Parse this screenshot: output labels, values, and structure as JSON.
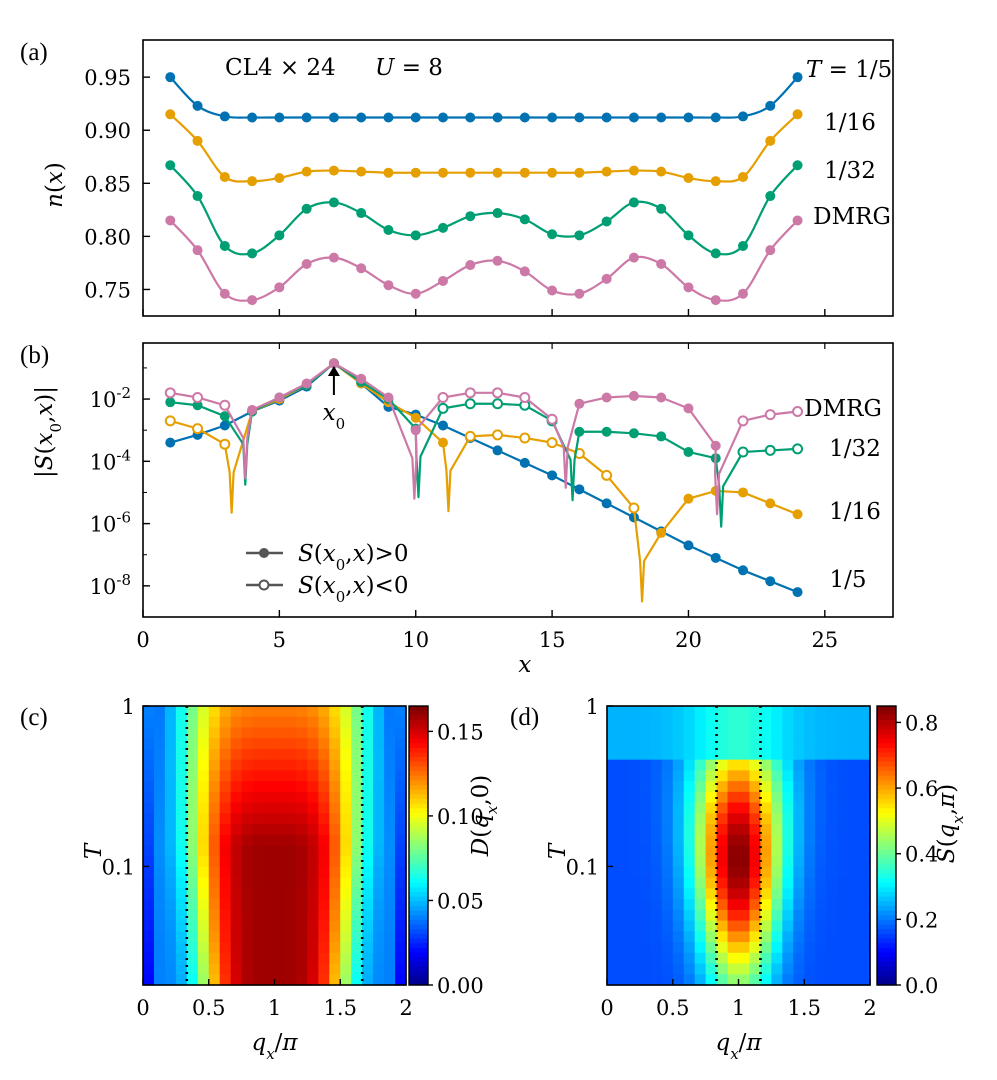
{
  "colors": {
    "T_1_5": "#0072b2",
    "T_1_16": "#e69f00",
    "T_1_32": "#009e73",
    "DMRG": "#cc79a7"
  },
  "chart_data": [
    {
      "panel": "(a)",
      "type": "line",
      "annotation": "CL4 × 24    U = 8",
      "xlim": [
        0,
        27.5
      ],
      "ylim": [
        0.725,
        0.985
      ],
      "yticks": [
        "0.75",
        "0.80",
        "0.85",
        "0.90",
        "0.95"
      ],
      "ylabel": "n(x)",
      "x": [
        1,
        2,
        3,
        4,
        5,
        6,
        7,
        8,
        9,
        10,
        11,
        12,
        13,
        14,
        15,
        16,
        17,
        18,
        19,
        20,
        21,
        22,
        23,
        24
      ],
      "series": [
        {
          "name": "T = 1/5",
          "key": "T_1_5",
          "values": [
            0.95,
            0.923,
            0.913,
            0.912,
            0.912,
            0.912,
            0.912,
            0.912,
            0.912,
            0.912,
            0.912,
            0.912,
            0.912,
            0.912,
            0.912,
            0.912,
            0.912,
            0.912,
            0.912,
            0.912,
            0.912,
            0.913,
            0.923,
            0.95
          ]
        },
        {
          "name": "1/16",
          "key": "T_1_16",
          "values": [
            0.915,
            0.89,
            0.856,
            0.852,
            0.855,
            0.861,
            0.862,
            0.861,
            0.86,
            0.86,
            0.86,
            0.86,
            0.86,
            0.86,
            0.86,
            0.86,
            0.861,
            0.862,
            0.861,
            0.855,
            0.852,
            0.856,
            0.89,
            0.915
          ]
        },
        {
          "name": "1/32",
          "key": "T_1_32",
          "values": [
            0.867,
            0.838,
            0.791,
            0.784,
            0.801,
            0.826,
            0.832,
            0.822,
            0.806,
            0.801,
            0.808,
            0.819,
            0.822,
            0.816,
            0.802,
            0.801,
            0.814,
            0.832,
            0.826,
            0.801,
            0.784,
            0.791,
            0.838,
            0.867
          ]
        },
        {
          "name": "DMRG",
          "key": "DMRG",
          "values": [
            0.815,
            0.787,
            0.746,
            0.74,
            0.752,
            0.774,
            0.78,
            0.77,
            0.754,
            0.746,
            0.758,
            0.773,
            0.777,
            0.767,
            0.749,
            0.746,
            0.76,
            0.78,
            0.774,
            0.752,
            0.74,
            0.746,
            0.787,
            0.815
          ]
        }
      ]
    },
    {
      "panel": "(b)",
      "type": "line",
      "scale": "log",
      "xlim": [
        0,
        27.5
      ],
      "ylim_log10": [
        -9,
        -0.2
      ],
      "yticks": [
        "10^-8",
        "10^-6",
        "10^-4",
        "10^-2"
      ],
      "xticks": [
        "0",
        "5",
        "10",
        "15",
        "20",
        "25"
      ],
      "xlabel": "x",
      "ylabel": "|S(x0,x)|",
      "x0_label": "x0",
      "x0": 7,
      "legend": [
        "S(x0,x)>0",
        "S(x0,x)<0"
      ],
      "x": [
        1,
        2,
        3,
        4,
        5,
        6,
        7,
        8,
        9,
        10,
        11,
        12,
        13,
        14,
        15,
        16,
        17,
        18,
        19,
        20,
        21,
        22,
        23,
        24
      ],
      "series": [
        {
          "name": "1/5",
          "key": "T_1_5",
          "log10": [
            -3.4,
            -3.15,
            -2.85,
            -2.4,
            -2.05,
            -1.6,
            -0.85,
            -1.5,
            -2.25,
            -2.5,
            -2.85,
            -3.25,
            -3.65,
            -4.05,
            -4.45,
            -4.9,
            -5.35,
            -5.8,
            -6.25,
            -6.7,
            -7.1,
            -7.5,
            -7.85,
            -8.2
          ],
          "positive": [
            true,
            true,
            true,
            true,
            true,
            true,
            true,
            true,
            true,
            true,
            true,
            true,
            true,
            true,
            true,
            true,
            true,
            true,
            true,
            true,
            true,
            true,
            true,
            true
          ],
          "zeros": []
        },
        {
          "name": "1/16",
          "key": "T_1_16",
          "log10": [
            -2.7,
            -2.95,
            -3.45,
            -2.4,
            -2.0,
            -1.55,
            -0.85,
            -1.5,
            -2.1,
            -2.6,
            -3.4,
            -3.2,
            -3.15,
            -3.25,
            -3.4,
            -3.75,
            -4.45,
            -5.5,
            -6.3,
            -5.2,
            -4.95,
            -5.0,
            -5.35,
            -5.7
          ],
          "positive": [
            false,
            false,
            false,
            true,
            true,
            true,
            true,
            true,
            true,
            true,
            true,
            false,
            false,
            false,
            false,
            false,
            false,
            false,
            true,
            true,
            true,
            true,
            true,
            true
          ],
          "zeros": [
            3.25,
            11.2,
            18.3
          ]
        },
        {
          "name": "1/32",
          "key": "T_1_32",
          "log10": [
            -2.1,
            -2.2,
            -2.55,
            -2.4,
            -1.95,
            -1.55,
            -0.85,
            -1.45,
            -2.0,
            -2.95,
            -2.3,
            -2.15,
            -2.15,
            -2.2,
            -2.7,
            -3.05,
            -3.05,
            -3.1,
            -3.2,
            -3.7,
            -3.9,
            -3.7,
            -3.65,
            -3.6
          ],
          "positive": [
            true,
            true,
            true,
            true,
            true,
            true,
            true,
            true,
            true,
            true,
            false,
            false,
            false,
            false,
            false,
            true,
            true,
            true,
            true,
            true,
            true,
            false,
            false,
            false
          ],
          "zeros": [
            3.75,
            10.1,
            15.75,
            21.2
          ]
        },
        {
          "name": "DMRG",
          "key": "DMRG",
          "log10": [
            -1.8,
            -1.95,
            -2.2,
            -2.35,
            -1.95,
            -1.5,
            -0.85,
            -1.35,
            -1.95,
            -3.0,
            -1.95,
            -1.8,
            -1.8,
            -1.95,
            -2.65,
            -2.15,
            -1.95,
            -1.9,
            -1.95,
            -2.3,
            -3.5,
            -2.7,
            -2.5,
            -2.4
          ],
          "positive": [
            false,
            false,
            false,
            true,
            true,
            true,
            true,
            true,
            true,
            true,
            false,
            false,
            false,
            false,
            false,
            true,
            true,
            true,
            true,
            true,
            true,
            false,
            false,
            false
          ],
          "zeros": [
            3.75,
            9.95,
            15.5,
            21.05
          ]
        }
      ]
    },
    {
      "panel": "(c)",
      "type": "heatmap",
      "xlabel": "qx/π",
      "ylabel": "T",
      "xticks": [
        "0",
        "0.5",
        "1",
        "1.5",
        "2"
      ],
      "yticks": [
        "1",
        "0.1"
      ],
      "colorbar_label": "D(qx,0)",
      "colorbar_ticks": [
        "0.00",
        "0.05",
        "0.10",
        "0.15"
      ],
      "zlim": [
        0,
        0.165
      ],
      "dotted_lines_qx": [
        0.333,
        1.667
      ],
      "cols": 24,
      "rows": 26
    },
    {
      "panel": "(d)",
      "type": "heatmap",
      "xlabel": "qx/π",
      "ylabel": "T",
      "xticks": [
        "0",
        "0.5",
        "1",
        "1.5",
        "2"
      ],
      "yticks": [
        "1",
        "0.1"
      ],
      "colorbar_label": "S(qx,π)",
      "colorbar_ticks": [
        "0.0",
        "0.2",
        "0.4",
        "0.6",
        "0.8"
      ],
      "zlim": [
        0,
        0.85
      ],
      "dotted_lines_qx": [
        0.833,
        1.167
      ],
      "cols": 24,
      "rows": 26
    }
  ],
  "text": {
    "panel_a": "(a)",
    "panel_b": "(b)",
    "panel_c": "(c)",
    "panel_d": "(d)",
    "annotation_a": "CL4 × 24",
    "annotation_u": "U = 8",
    "label_T15": "T = 1/5",
    "label_T116": "1/16",
    "label_T132": "1/32",
    "label_DMRG": "DMRG",
    "blabel_DMRG": "DMRG",
    "blabel_132": "1/32",
    "blabel_116": "1/16",
    "blabel_15": "1/5"
  }
}
